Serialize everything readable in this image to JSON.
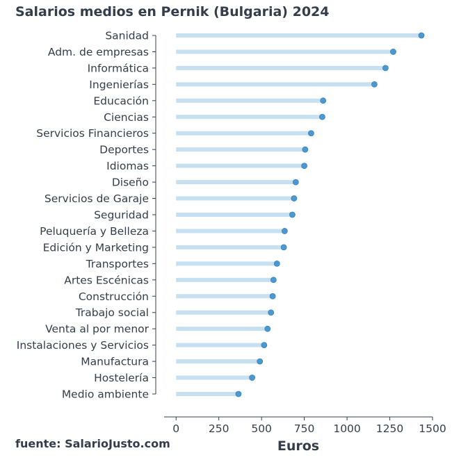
{
  "chart_data": {
    "type": "lollipop",
    "title": "Salarios medios en Pernik (Bulgaria) 2024",
    "xlabel": "Euros",
    "ylabel": "",
    "source": "fuente: SalarioJusto.com",
    "xlim": [
      -70,
      1500
    ],
    "xticks": [
      0,
      250,
      500,
      750,
      1000,
      1250,
      1500
    ],
    "grid": false,
    "colors": {
      "stem": "#c6e0f1",
      "dot": "#4c98d0",
      "dot_edge": "#3a80b8",
      "text": "#333d4b",
      "axis": "#333d4b"
    },
    "categories": [
      "Sanidad",
      "Adm. de empresas",
      "Informática",
      "Ingenierías",
      "Educación",
      "Ciencias",
      "Servicios Financieros",
      "Deportes",
      "Idiomas",
      "Diseño",
      "Servicios de Garaje",
      "Seguridad",
      "Peluquería y Belleza",
      "Edición y Marketing",
      "Transportes",
      "Artes Escénicas",
      "Construcción",
      "Trabajo social",
      "Venta al por menor",
      "Instalaciones y Servicios",
      "Manufactura",
      "Hostelería",
      "Medio ambiente"
    ],
    "values": [
      1435,
      1270,
      1225,
      1160,
      860,
      855,
      790,
      755,
      750,
      700,
      690,
      680,
      635,
      630,
      590,
      570,
      565,
      555,
      535,
      515,
      490,
      445,
      365
    ]
  }
}
